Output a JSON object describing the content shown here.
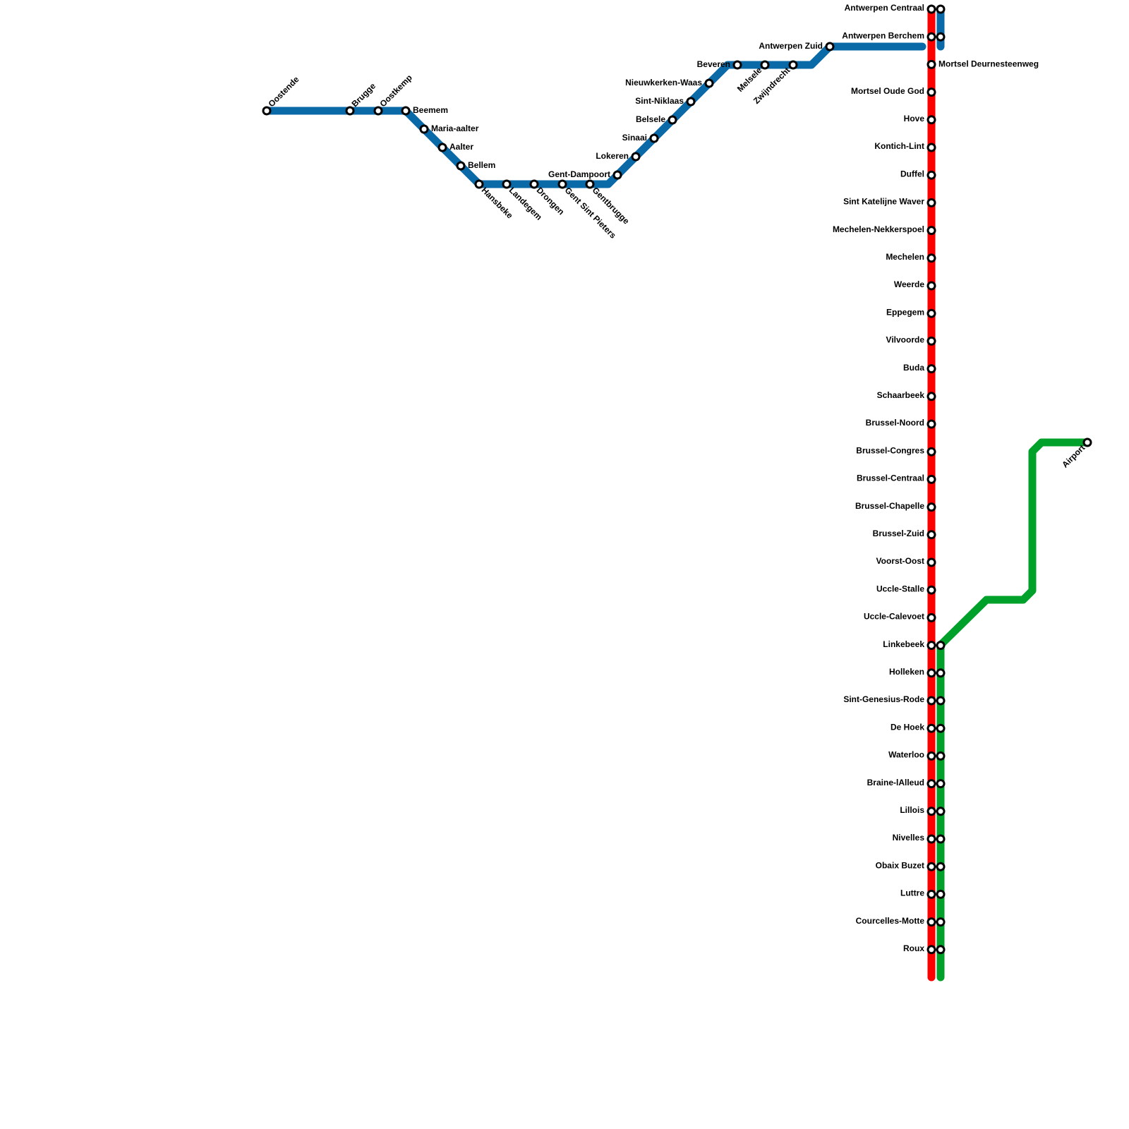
{
  "blue_line": {
    "stations": [
      "Oostende",
      "Brugge",
      "Oostkemp",
      "Beemem",
      "Maria-aalter",
      "Aalter",
      "Bellem",
      "Hansbeke",
      "Landegem",
      "Drongen",
      "Gent Sint Pieters",
      "Gentbrugge",
      "Gent-Dampoort",
      "Lokeren",
      "Sinaai",
      "Belsele",
      "Sint-Niklaas",
      "Nieuwkerken-Waas",
      "Beveren",
      "Melsele",
      "Zwijndrecht",
      "Antwerpen Zuid"
    ]
  },
  "red_line": {
    "stations": [
      "Antwerpen Centraal",
      "Antwerpen Berchem",
      "Mortsel Deurnesteenweg",
      "Mortsel Oude God",
      "Hove",
      "Kontich-Lint",
      "Duffel",
      "Sint Katelijne Waver",
      "Mechelen-Nekkerspoel",
      "Mechelen",
      "Weerde",
      "Eppegem",
      "Vilvoorde",
      "Buda",
      "Schaarbeek",
      "Brussel-Noord",
      "Brussel-Congres",
      "Brussel-Centraal",
      "Brussel-Chapelle",
      "Brussel-Zuid",
      "Voorst-Oost",
      "Uccle-Stalle",
      "Uccle-Calevoet",
      "Linkebeek",
      "Holleken",
      "Sint-Genesius-Rode",
      "De Hoek",
      "Waterloo",
      "Braine-lAlleud",
      "Lillois",
      "Nivelles",
      "Obaix Buzet",
      "Luttre",
      "Courcelles-Motte",
      "Roux"
    ]
  },
  "green_line": {
    "stations": [
      "Airport"
    ]
  }
}
